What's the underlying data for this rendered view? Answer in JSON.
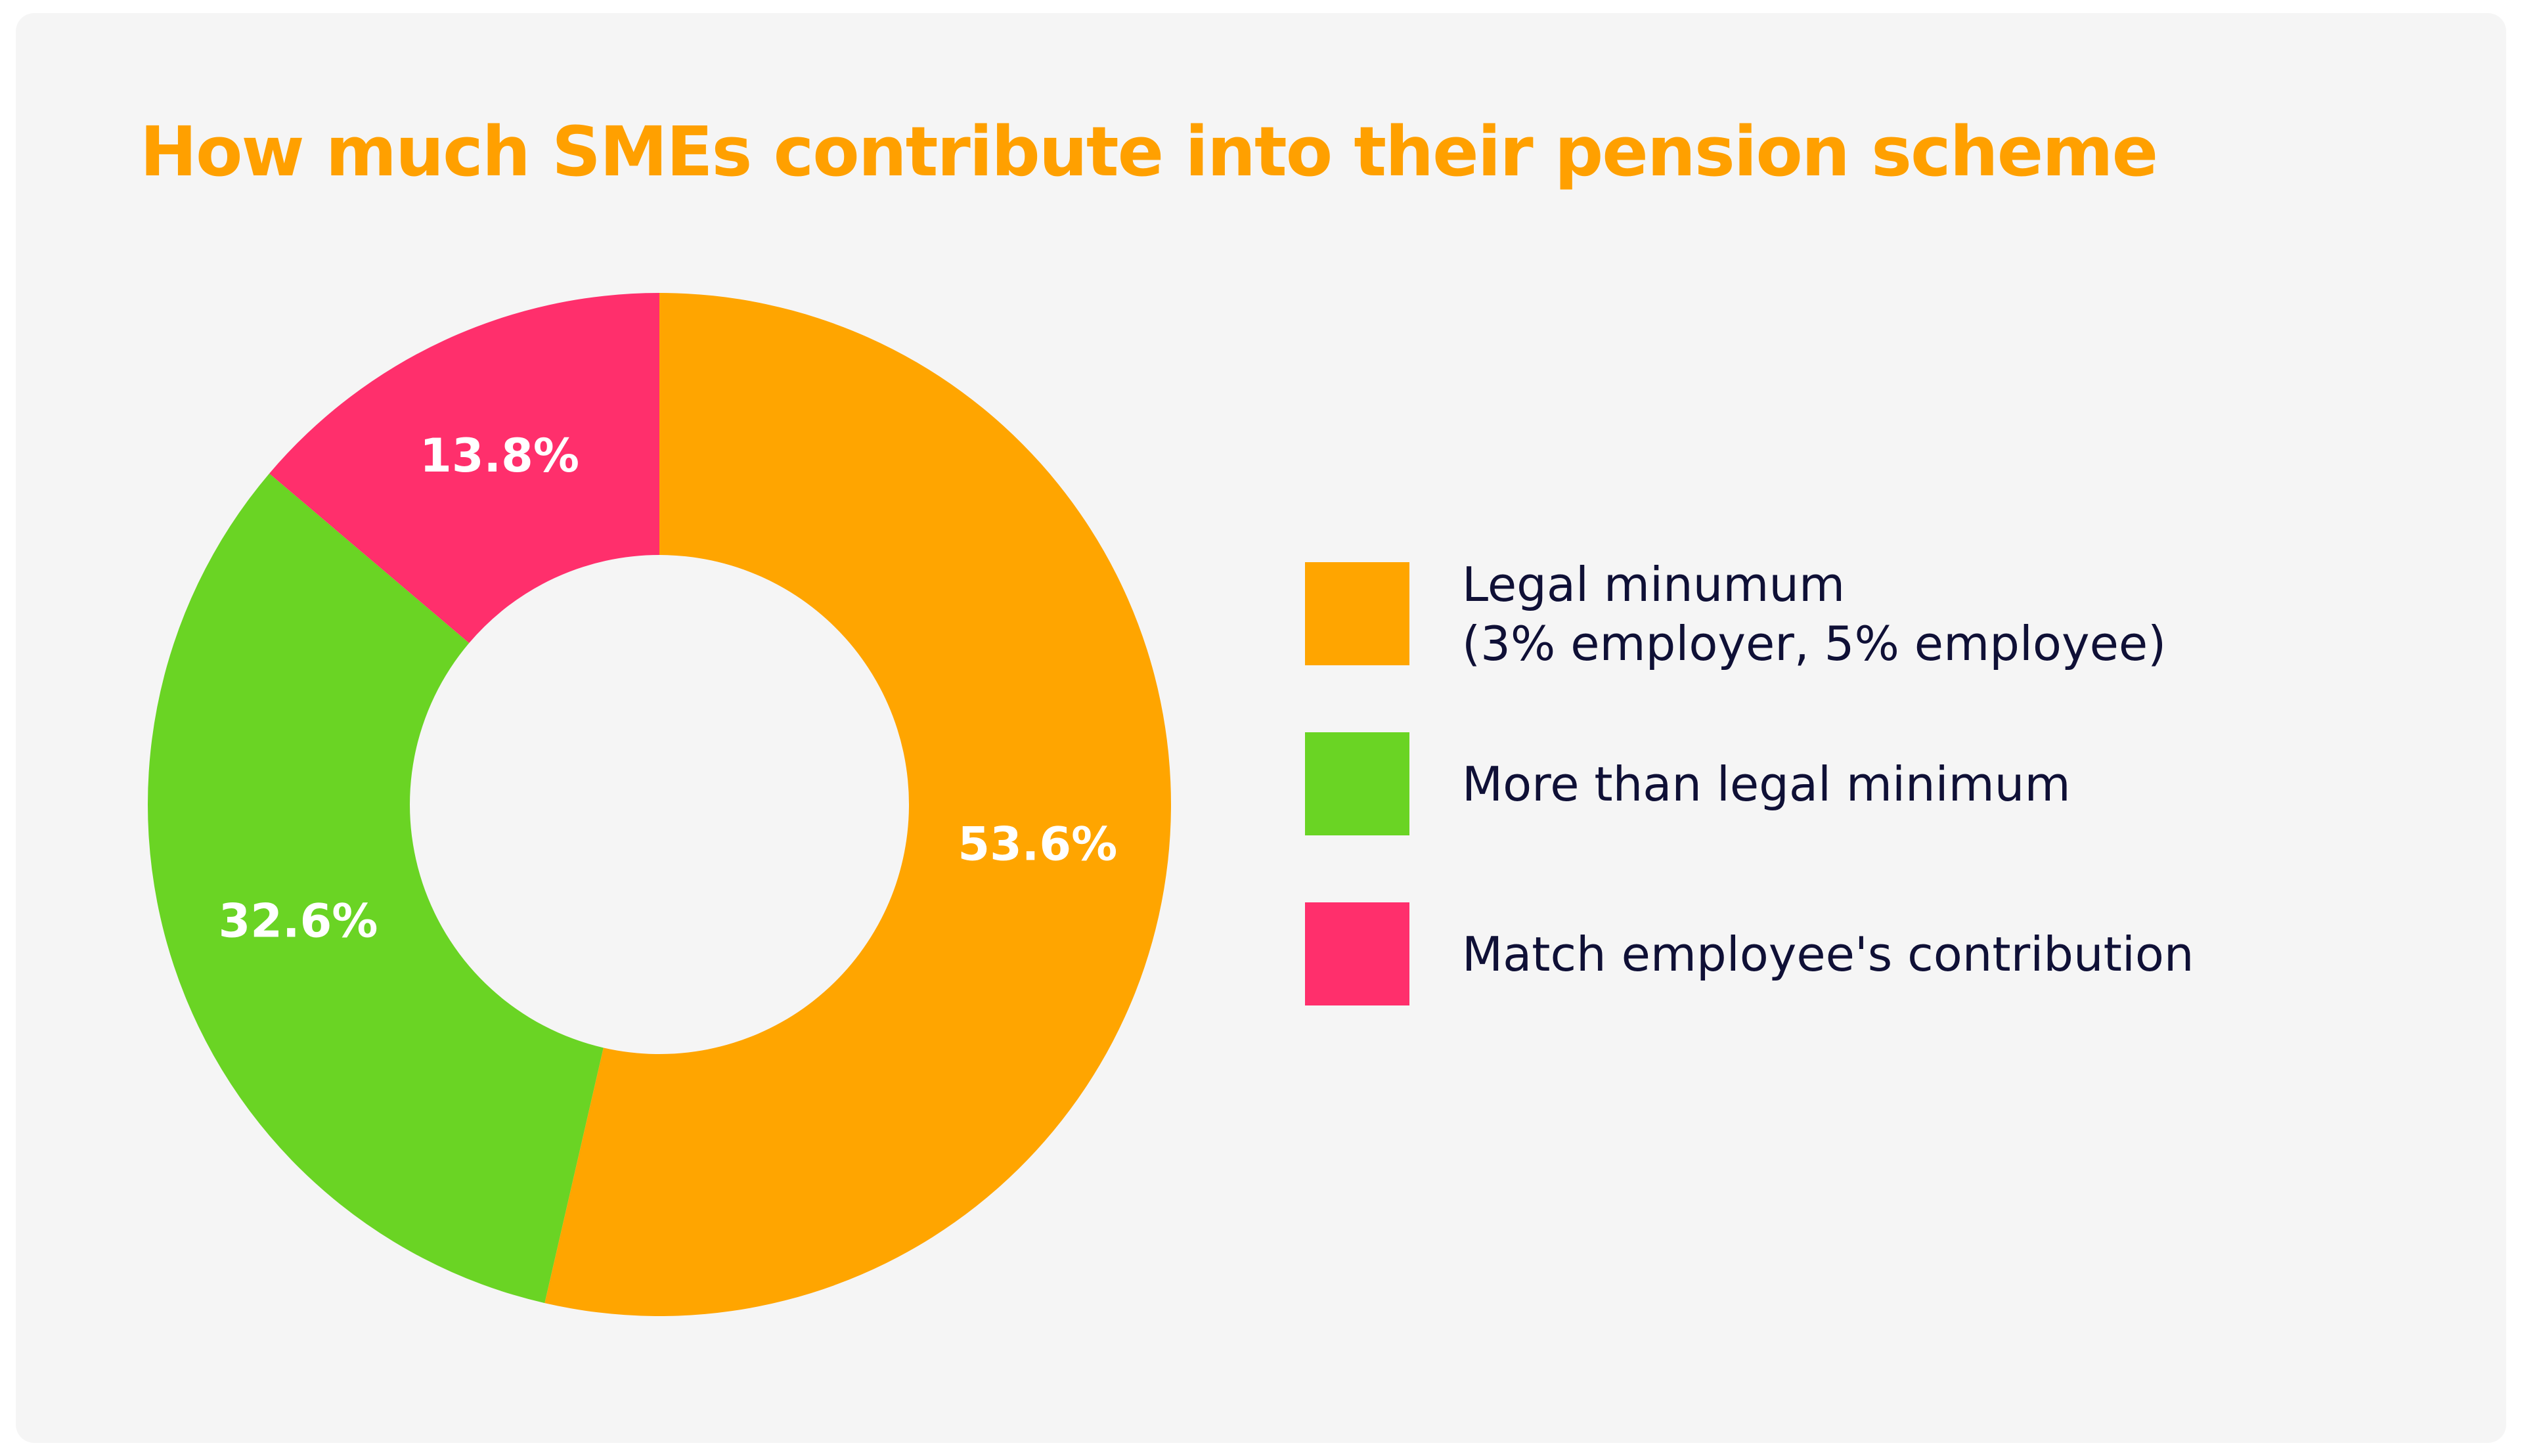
{
  "chart_data": {
    "type": "pie",
    "donut": true,
    "title": "How much SMEs contribute into their pension scheme",
    "categories": [
      "Legal minumum\n(3% employer, 5% employee)",
      "More than legal minimum",
      "Match employee's contribution"
    ],
    "values": [
      53.6,
      32.6,
      13.8
    ],
    "value_labels": [
      "53.6%",
      "32.6%",
      "13.8%"
    ],
    "colors": [
      "#ffa500",
      "#6ad424",
      "#ff2f6c"
    ]
  }
}
